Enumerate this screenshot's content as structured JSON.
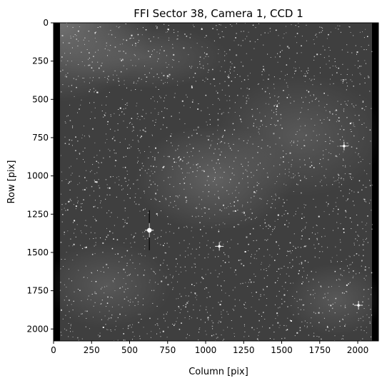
{
  "figure": {
    "title": "FFI Sector 38, Camera 1, CCD 1",
    "xlabel": "Column [pix]",
    "ylabel": "Row [pix]",
    "x_ticks": [
      "0",
      "250",
      "500",
      "750",
      "1000",
      "1250",
      "1500",
      "1750",
      "2000"
    ],
    "y_ticks": [
      "0",
      "250",
      "500",
      "750",
      "1000",
      "1250",
      "1500",
      "1750",
      "2000"
    ],
    "x_range": [
      0,
      2136
    ],
    "y_range": [
      0,
      2078
    ],
    "colormap": "gray",
    "background_colors": {
      "sky_base": "#3f3f3f",
      "sky_bright": "#7a7a7a",
      "border": "#000000",
      "stars": "#ffffff"
    },
    "bright_sources": [
      {
        "column": 630,
        "row": 1355,
        "note": "saturated star with bleed column"
      },
      {
        "column": 2005,
        "row": 1845,
        "note": "bright star"
      },
      {
        "column": 1090,
        "row": 1460,
        "note": "moderate star"
      },
      {
        "column": 1910,
        "row": 805,
        "note": "moderate star"
      }
    ]
  }
}
